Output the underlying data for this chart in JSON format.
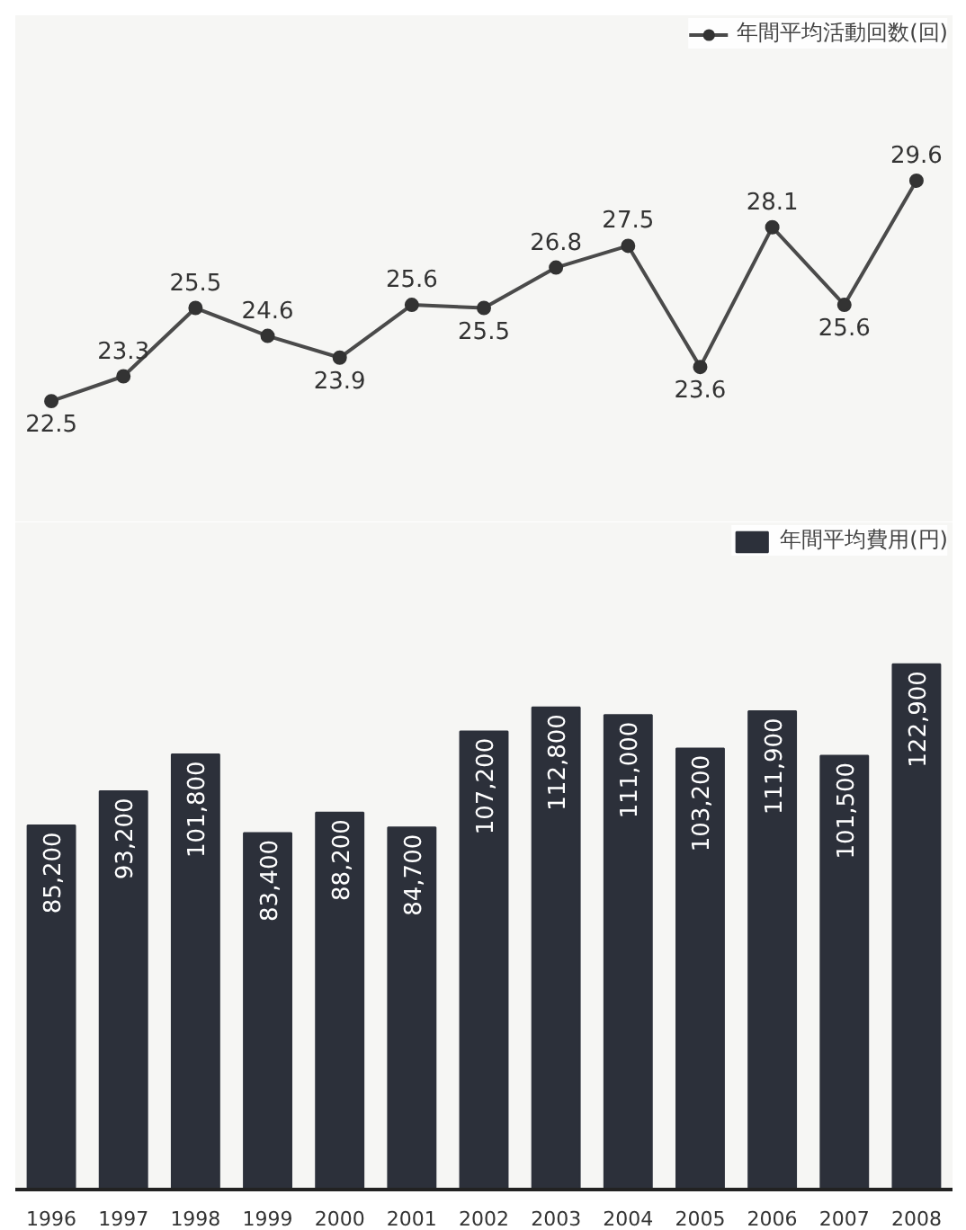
{
  "chart_data": [
    {
      "type": "line",
      "categories": [
        "1996",
        "1997",
        "1998",
        "1999",
        "2000",
        "2001",
        "2002",
        "2003",
        "2004",
        "2005",
        "2006",
        "2007",
        "2008"
      ],
      "series": [
        {
          "name": "年間平均活動回数(回)",
          "color": "#4a4a4a",
          "values": [
            22.5,
            23.3,
            25.5,
            24.6,
            23.9,
            25.6,
            25.5,
            26.8,
            27.5,
            23.6,
            28.1,
            25.6,
            29.6
          ]
        }
      ],
      "tick_labels": false,
      "data_labels": true,
      "legend": "top right",
      "marker": "circle",
      "grid": false
    },
    {
      "type": "bar",
      "categories": [
        "1996",
        "1997",
        "1998",
        "1999",
        "2000",
        "2001",
        "2002",
        "2003",
        "2004",
        "2005",
        "2006",
        "2007",
        "2008"
      ],
      "series": [
        {
          "name": "年間平均費用(円)",
          "color": "#2c303a",
          "values": [
            85200,
            93200,
            101800,
            83400,
            88200,
            84700,
            107200,
            112800,
            111000,
            103200,
            111900,
            101500,
            122900
          ],
          "value_labels": [
            "85,200",
            "93,200",
            "101,800",
            "83,400",
            "88,200",
            "84,700",
            "107,200",
            "112,800",
            "111,000",
            "103,200",
            "111,900",
            "101,500",
            "122,900"
          ]
        }
      ],
      "tick_labels": "x",
      "data_labels": true,
      "legend": "top right",
      "grid": false
    }
  ]
}
